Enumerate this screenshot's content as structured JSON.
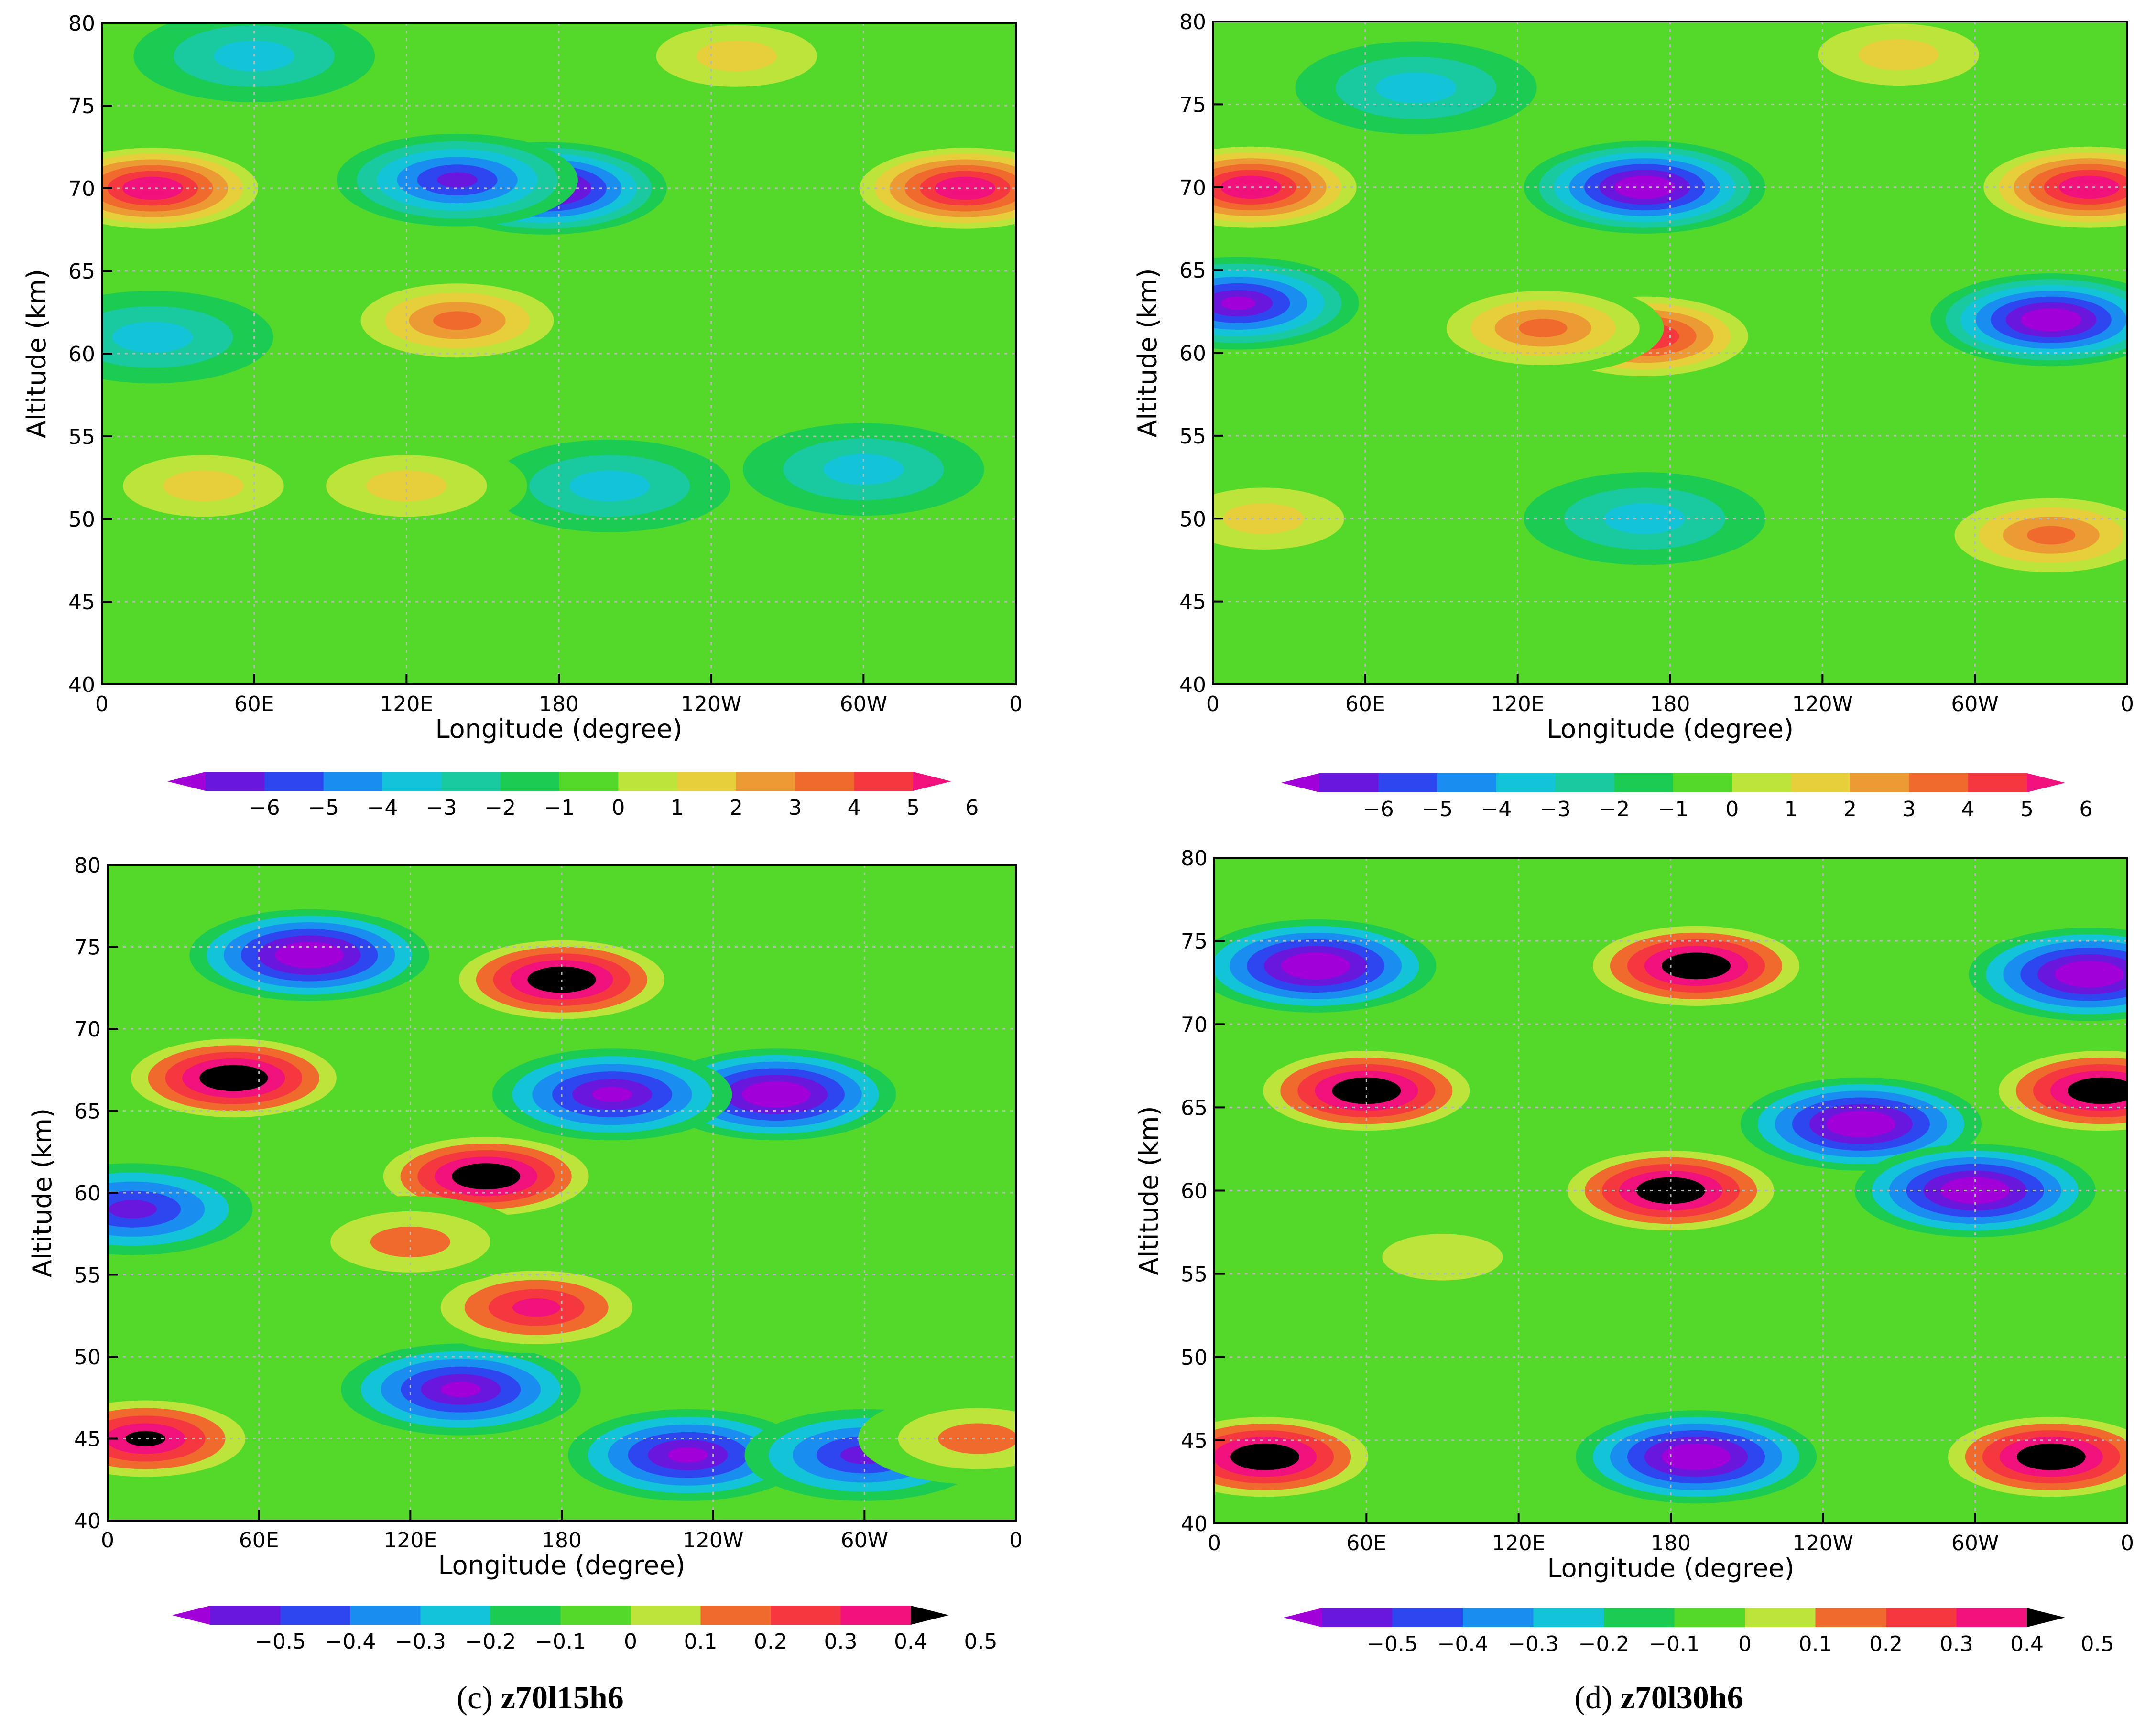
{
  "chart_data": [
    {
      "type": "heatmap",
      "panel": "a",
      "xlabel": "Longitude (degree)",
      "ylabel": "Altitude (km)",
      "xticks": [
        "0",
        "60E",
        "120E",
        "180",
        "120W",
        "60W",
        "0"
      ],
      "ylim": [
        40,
        80
      ],
      "yticks": [
        "40",
        "45",
        "50",
        "55",
        "60",
        "65",
        "70",
        "75",
        "80"
      ],
      "grid": true,
      "colorbar": {
        "labels": [
          "-6",
          "-5",
          "-4",
          "-3",
          "-2",
          "-1",
          "0",
          "1",
          "2",
          "3",
          "4",
          "5",
          "6"
        ]
      },
      "blobs": [
        {
          "lon": 20,
          "alt": 70,
          "value": 6
        },
        {
          "lon": 340,
          "alt": 70,
          "value": 6
        },
        {
          "lon": 175,
          "alt": 70,
          "value": -6
        },
        {
          "lon": 140,
          "alt": 70.5,
          "value": -4
        },
        {
          "lon": 140,
          "alt": 62,
          "value": 3
        },
        {
          "lon": 200,
          "alt": 52,
          "value": -2
        },
        {
          "lon": 300,
          "alt": 53,
          "value": -2
        },
        {
          "lon": 120,
          "alt": 52,
          "value": 2
        },
        {
          "lon": 40,
          "alt": 52,
          "value": 2
        },
        {
          "lon": 20,
          "alt": 61,
          "value": -2
        },
        {
          "lon": 250,
          "alt": 78,
          "value": 2
        },
        {
          "lon": 60,
          "alt": 78,
          "value": -2
        }
      ]
    },
    {
      "type": "heatmap",
      "panel": "b",
      "xlabel": "Longitude (degree)",
      "ylabel": "Altitude (km)",
      "xticks": [
        "0",
        "60E",
        "120E",
        "180",
        "120W",
        "60W",
        "0"
      ],
      "ylim": [
        40,
        80
      ],
      "yticks": [
        "40",
        "45",
        "50",
        "55",
        "60",
        "65",
        "70",
        "75",
        "80"
      ],
      "grid": true,
      "colorbar": {
        "labels": [
          "-6",
          "-5",
          "-4",
          "-3",
          "-2",
          "-1",
          "0",
          "1",
          "2",
          "3",
          "4",
          "5",
          "6"
        ]
      },
      "blobs": [
        {
          "lon": 15,
          "alt": 70,
          "value": 6
        },
        {
          "lon": 345,
          "alt": 70,
          "value": 6
        },
        {
          "lon": 170,
          "alt": 70,
          "value": -6
        },
        {
          "lon": 10,
          "alt": 63,
          "value": -5
        },
        {
          "lon": 330,
          "alt": 62,
          "value": -6
        },
        {
          "lon": 170,
          "alt": 61,
          "value": 5
        },
        {
          "lon": 130,
          "alt": 61.5,
          "value": 3
        },
        {
          "lon": 330,
          "alt": 49,
          "value": 3
        },
        {
          "lon": 170,
          "alt": 50,
          "value": -2
        },
        {
          "lon": 270,
          "alt": 78,
          "value": 2
        },
        {
          "lon": 80,
          "alt": 76,
          "value": -2
        },
        {
          "lon": 20,
          "alt": 50,
          "value": 2
        }
      ]
    },
    {
      "type": "heatmap",
      "panel": "c",
      "caption_letter": "(c)",
      "caption_name": "z70l15h6",
      "xlabel": "Longitude (degree)",
      "ylabel": "Altitude (km)",
      "xticks": [
        "0",
        "60E",
        "120E",
        "180",
        "120W",
        "60W",
        "0"
      ],
      "ylim": [
        40,
        80
      ],
      "yticks": [
        "40",
        "45",
        "50",
        "55",
        "60",
        "65",
        "70",
        "75",
        "80"
      ],
      "grid": true,
      "colorbar": {
        "labels": [
          "-0.5",
          "-0.4",
          "-0.3",
          "-0.2",
          "-0.1",
          "0",
          "0.1",
          "0.2",
          "0.3",
          "0.4",
          "0.5"
        ]
      },
      "blobs": [
        {
          "lon": 50,
          "alt": 67,
          "value": 0.5
        },
        {
          "lon": 150,
          "alt": 61,
          "value": 0.5
        },
        {
          "lon": 180,
          "alt": 73,
          "value": 0.5
        },
        {
          "lon": 80,
          "alt": 74.5,
          "value": -0.5
        },
        {
          "lon": 265,
          "alt": 66,
          "value": -0.5
        },
        {
          "lon": 200,
          "alt": 66,
          "value": -0.4
        },
        {
          "lon": 15,
          "alt": 45,
          "value": 0.4
        },
        {
          "lon": 140,
          "alt": 48,
          "value": -0.4
        },
        {
          "lon": 230,
          "alt": 44,
          "value": -0.4
        },
        {
          "lon": 300,
          "alt": 44,
          "value": -0.3
        },
        {
          "lon": 10,
          "alt": 59,
          "value": -0.3
        },
        {
          "lon": 170,
          "alt": 53,
          "value": 0.3
        },
        {
          "lon": 345,
          "alt": 45,
          "value": 0.2
        },
        {
          "lon": 120,
          "alt": 57,
          "value": 0.2
        }
      ]
    },
    {
      "type": "heatmap",
      "panel": "d",
      "caption_letter": "(d)",
      "caption_name": "z70l30h6",
      "xlabel": "Longitude (degree)",
      "ylabel": "Altitude (km)",
      "xticks": [
        "0",
        "60E",
        "120E",
        "180",
        "120W",
        "60W",
        "0"
      ],
      "ylim": [
        40,
        80
      ],
      "yticks": [
        "40",
        "45",
        "50",
        "55",
        "60",
        "65",
        "70",
        "75",
        "80"
      ],
      "grid": true,
      "colorbar": {
        "labels": [
          "-0.5",
          "-0.4",
          "-0.3",
          "-0.2",
          "-0.1",
          "0",
          "0.1",
          "0.2",
          "0.3",
          "0.4",
          "0.5"
        ]
      },
      "blobs": [
        {
          "lon": 60,
          "alt": 66,
          "value": 0.5
        },
        {
          "lon": 180,
          "alt": 60,
          "value": 0.5
        },
        {
          "lon": 20,
          "alt": 44,
          "value": 0.5
        },
        {
          "lon": 330,
          "alt": 44,
          "value": 0.5
        },
        {
          "lon": 190,
          "alt": 73.5,
          "value": 0.5
        },
        {
          "lon": 40,
          "alt": 73.5,
          "value": -0.5
        },
        {
          "lon": 255,
          "alt": 64,
          "value": -0.5
        },
        {
          "lon": 300,
          "alt": 60,
          "value": -0.5
        },
        {
          "lon": 190,
          "alt": 44,
          "value": -0.5
        },
        {
          "lon": 345,
          "alt": 73,
          "value": -0.5
        },
        {
          "lon": 350,
          "alt": 66,
          "value": 0.5
        },
        {
          "lon": 90,
          "alt": 56,
          "value": 0.1
        }
      ]
    }
  ]
}
